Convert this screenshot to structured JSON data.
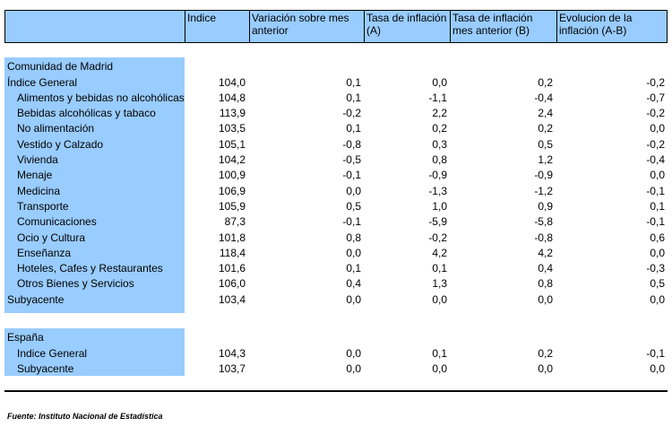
{
  "header": {
    "columns": [
      "Indice",
      "Variación sobre mes anterior",
      "Tasa de inflación (A)",
      "Tasa de inflación mes anterior (B)",
      "Evolucion de la inflación (A-B)"
    ]
  },
  "madrid": {
    "title": "Comunidad de Madrid",
    "rows": [
      {
        "label": "Índice General",
        "indent": false,
        "v": [
          "104,0",
          "0,1",
          "0,0",
          "0,2",
          "-0,2"
        ]
      },
      {
        "label": "Alimentos y bebidas no alcohólicas",
        "indent": true,
        "v": [
          "104,8",
          "0,1",
          "-1,1",
          "-0,4",
          "-0,7"
        ]
      },
      {
        "label": "Bebidas alcohólicas y tabaco",
        "indent": true,
        "v": [
          "113,9",
          "-0,2",
          "2,2",
          "2,4",
          "-0,2"
        ]
      },
      {
        "label": "No alimentación",
        "indent": true,
        "v": [
          "103,5",
          "0,1",
          "0,2",
          "0,2",
          "0,0"
        ]
      },
      {
        "label": "Vestido y Calzado",
        "indent": true,
        "v": [
          "105,1",
          "-0,8",
          "0,3",
          "0,5",
          "-0,2"
        ]
      },
      {
        "label": "Vivienda",
        "indent": true,
        "v": [
          "104,2",
          "-0,5",
          "0,8",
          "1,2",
          "-0,4"
        ]
      },
      {
        "label": "Menaje",
        "indent": true,
        "v": [
          "100,9",
          "-0,1",
          "-0,9",
          "-0,9",
          "0,0"
        ]
      },
      {
        "label": "Medicina",
        "indent": true,
        "v": [
          "106,9",
          "0,0",
          "-1,3",
          "-1,2",
          "-0,1"
        ]
      },
      {
        "label": "Transporte",
        "indent": true,
        "v": [
          "105,9",
          "0,5",
          "1,0",
          "0,9",
          "0,1"
        ]
      },
      {
        "label": "Comunicaciones",
        "indent": true,
        "v": [
          "87,3",
          "-0,1",
          "-5,9",
          "-5,8",
          "-0,1"
        ]
      },
      {
        "label": "Ocio y Cultura",
        "indent": true,
        "v": [
          "101,8",
          "0,8",
          "-0,2",
          "-0,8",
          "0,6"
        ]
      },
      {
        "label": "Enseñanza",
        "indent": true,
        "v": [
          "118,4",
          "0,0",
          "4,2",
          "4,2",
          "0,0"
        ]
      },
      {
        "label": "Hoteles, Cafes y Restaurantes",
        "indent": true,
        "v": [
          "101,6",
          "0,1",
          "0,1",
          "0,4",
          "-0,3"
        ]
      },
      {
        "label": "Otros Bienes y Servicios",
        "indent": true,
        "v": [
          "106,0",
          "0,4",
          "1,3",
          "0,8",
          "0,5"
        ]
      },
      {
        "label": "Subyacente",
        "indent": false,
        "v": [
          "103,4",
          "0,0",
          "0,0",
          "0,0",
          "0,0"
        ]
      }
    ]
  },
  "espana": {
    "title": "España",
    "rows": [
      {
        "label": "Indice General",
        "indent": true,
        "v": [
          "104,3",
          "0,0",
          "0,1",
          "0,2",
          "-0,1"
        ]
      },
      {
        "label": "Subyacente",
        "indent": true,
        "v": [
          "103,7",
          "0,0",
          "0,0",
          "0,0",
          "0,0"
        ]
      }
    ]
  },
  "source": "Fuente: Instituto Nacional de Estadística"
}
